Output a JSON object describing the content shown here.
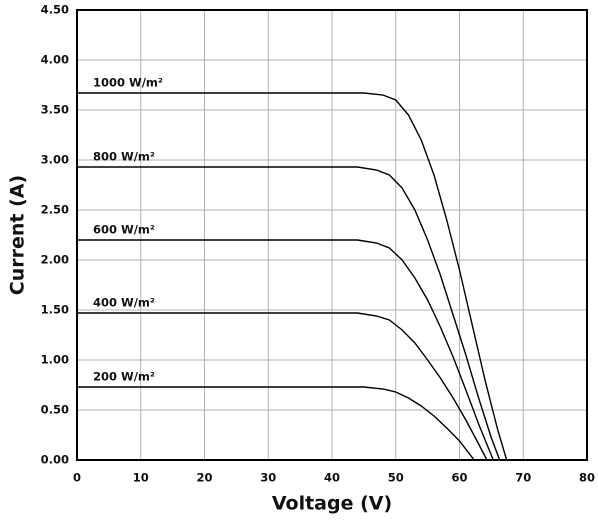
{
  "chart_data": {
    "type": "line",
    "x_label": "Voltage (V)",
    "y_label": "Current (A)",
    "xlim": [
      0,
      80
    ],
    "xticks": [
      0,
      10,
      20,
      30,
      40,
      50,
      60,
      70,
      80
    ],
    "ylim": [
      0,
      4.5
    ],
    "yticks": [
      {
        "value": 0,
        "label": "0.00"
      },
      {
        "value": 0.5,
        "label": "0.50"
      },
      {
        "value": 1,
        "label": "1.00"
      },
      {
        "value": 1.5,
        "label": "1.50"
      },
      {
        "value": 2,
        "label": "2.00"
      },
      {
        "value": 2.5,
        "label": "2.50"
      },
      {
        "value": 3,
        "label": "3.00"
      },
      {
        "value": 3.5,
        "label": "3.50"
      },
      {
        "value": 4,
        "label": "4.00"
      },
      {
        "value": 4.5,
        "label": "4.50"
      }
    ],
    "grid": true,
    "grid_color": "#b3b3b3",
    "series": [
      {
        "name": "1000 W/m²",
        "color": "#000000",
        "x": [
          0,
          45,
          48,
          50,
          52,
          54,
          56,
          58,
          60,
          62,
          64,
          66,
          67.4
        ],
        "values": [
          3.67,
          3.67,
          3.65,
          3.6,
          3.45,
          3.2,
          2.85,
          2.4,
          1.9,
          1.35,
          0.8,
          0.3,
          0
        ]
      },
      {
        "name": "800 W/m²",
        "color": "#000000",
        "x": [
          0,
          44,
          47,
          49,
          51,
          53,
          55,
          57,
          59,
          61,
          63,
          65,
          66.3
        ],
        "values": [
          2.93,
          2.93,
          2.9,
          2.85,
          2.72,
          2.5,
          2.2,
          1.85,
          1.45,
          1.05,
          0.62,
          0.22,
          0
        ]
      },
      {
        "name": "600 W/m²",
        "color": "#000000",
        "x": [
          0,
          44,
          47,
          49,
          51,
          53,
          55,
          57,
          59,
          61,
          63,
          65.3
        ],
        "values": [
          2.2,
          2.2,
          2.17,
          2.12,
          2.0,
          1.82,
          1.6,
          1.33,
          1.03,
          0.7,
          0.36,
          0
        ]
      },
      {
        "name": "400 W/m²",
        "color": "#000000",
        "x": [
          0,
          44,
          47,
          49,
          51,
          53,
          55,
          57,
          59,
          61,
          63,
          64.3
        ],
        "values": [
          1.47,
          1.47,
          1.44,
          1.4,
          1.3,
          1.17,
          1.0,
          0.82,
          0.62,
          0.4,
          0.16,
          0
        ]
      },
      {
        "name": "200 W/m²",
        "color": "#000000",
        "x": [
          0,
          45,
          48,
          50,
          52,
          54,
          56,
          58,
          60,
          62.3
        ],
        "values": [
          0.73,
          0.73,
          0.71,
          0.68,
          0.62,
          0.54,
          0.44,
          0.32,
          0.19,
          0
        ]
      }
    ]
  }
}
